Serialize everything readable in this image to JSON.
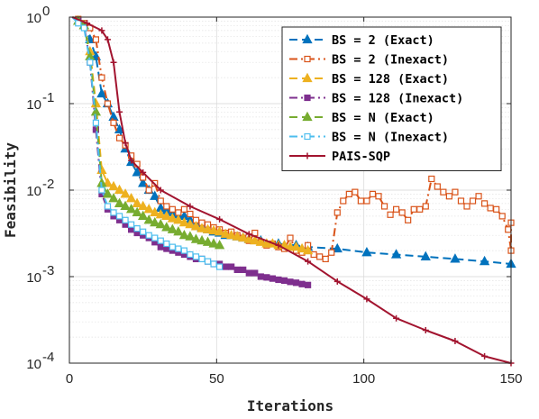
{
  "chart_data": {
    "type": "line",
    "xlabel": "Iterations",
    "ylabel": "Feasibility",
    "xlim": [
      0,
      150
    ],
    "ylim": [
      0.0001,
      1
    ],
    "yscale": "log",
    "grid": true,
    "legend_position": "top-right",
    "x_ticks": [
      {
        "value": 0,
        "label": "0"
      },
      {
        "value": 50,
        "label": "50"
      },
      {
        "value": 100,
        "label": "100"
      },
      {
        "value": 150,
        "label": "150"
      }
    ],
    "y_ticks": [
      {
        "value": 1,
        "base": "10",
        "exp": "0"
      },
      {
        "value": 0.1,
        "base": "10",
        "exp": "-1"
      },
      {
        "value": 0.01,
        "base": "10",
        "exp": "-2"
      },
      {
        "value": 0.001,
        "base": "10",
        "exp": "-3"
      },
      {
        "value": 0.0001,
        "base": "10",
        "exp": "-4"
      }
    ],
    "series": [
      {
        "name": "BS = 2 (Exact)",
        "color": "#0072BD",
        "dash": "dashed",
        "marker": "triangle",
        "marker_fill": "#0072BD",
        "x": [
          1,
          3,
          5,
          7,
          9,
          11,
          13,
          15,
          17,
          19,
          21,
          23,
          25,
          27,
          29,
          31,
          33,
          35,
          37,
          39,
          41,
          43,
          45,
          47,
          49,
          51,
          53,
          55,
          57,
          59,
          61,
          65,
          71,
          77,
          81,
          91,
          101,
          111,
          121,
          131,
          141,
          151
        ],
        "y": [
          1,
          0.9,
          0.8,
          0.55,
          0.35,
          0.13,
          0.1,
          0.07,
          0.05,
          0.03,
          0.021,
          0.016,
          0.012,
          0.01,
          0.0085,
          0.0062,
          0.0058,
          0.0055,
          0.0052,
          0.005,
          0.0045,
          0.004,
          0.0037,
          0.0035,
          0.0033,
          0.0032,
          0.003,
          0.003,
          0.0029,
          0.0028,
          0.0027,
          0.0026,
          0.0024,
          0.0023,
          0.0022,
          0.0021,
          0.0019,
          0.0018,
          0.0017,
          0.0016,
          0.0015,
          0.0014
        ]
      },
      {
        "name": "BS = 2 (Inexact)",
        "color": "#D95319",
        "dash": "dashdot",
        "marker": "square-open",
        "marker_fill": "none",
        "x": [
          1,
          3,
          5,
          7,
          9,
          11,
          13,
          15,
          17,
          19,
          21,
          23,
          25,
          27,
          29,
          31,
          33,
          35,
          37,
          39,
          41,
          43,
          45,
          47,
          49,
          51,
          53,
          55,
          57,
          59,
          61,
          63,
          65,
          67,
          69,
          71,
          73,
          75,
          77,
          79,
          81,
          83,
          85,
          87,
          89,
          91,
          93,
          95,
          97,
          99,
          101,
          103,
          105,
          107,
          109,
          111,
          113,
          115,
          117,
          119,
          121,
          123,
          125,
          127,
          129,
          131,
          133,
          135,
          137,
          139,
          141,
          143,
          145,
          147,
          149,
          150,
          151
        ],
        "y": [
          1,
          0.95,
          0.85,
          0.75,
          0.55,
          0.2,
          0.1,
          0.06,
          0.04,
          0.033,
          0.025,
          0.02,
          0.014,
          0.01,
          0.012,
          0.0075,
          0.0065,
          0.006,
          0.0055,
          0.006,
          0.0053,
          0.0045,
          0.0042,
          0.004,
          0.0037,
          0.0035,
          0.0032,
          0.0033,
          0.003,
          0.0028,
          0.0026,
          0.0032,
          0.0025,
          0.0023,
          0.0024,
          0.0022,
          0.0021,
          0.0028,
          0.002,
          0.0019,
          0.0023,
          0.0018,
          0.0017,
          0.0016,
          0.0019,
          0.0055,
          0.0075,
          0.009,
          0.0095,
          0.0075,
          0.0075,
          0.009,
          0.0085,
          0.0065,
          0.0052,
          0.006,
          0.0055,
          0.0045,
          0.006,
          0.006,
          0.0065,
          0.0135,
          0.011,
          0.0095,
          0.0085,
          0.0095,
          0.0075,
          0.0065,
          0.0075,
          0.0085,
          0.007,
          0.0062,
          0.006,
          0.005,
          0.0035,
          0.002,
          0.0042
        ]
      },
      {
        "name": "BS = 128 (Exact)",
        "color": "#EDB120",
        "dash": "dashed",
        "marker": "triangle",
        "marker_fill": "#EDB120",
        "x": [
          1,
          3,
          5,
          7,
          9,
          11,
          13,
          15,
          17,
          19,
          21,
          23,
          25,
          27,
          29,
          31,
          33,
          35,
          37,
          39,
          41,
          43,
          45,
          47,
          49,
          51,
          53,
          55,
          57,
          59,
          61,
          63,
          65,
          67,
          69,
          71,
          73,
          75,
          77,
          79,
          81
        ],
        "y": [
          1,
          0.9,
          0.8,
          0.4,
          0.1,
          0.017,
          0.012,
          0.011,
          0.01,
          0.009,
          0.008,
          0.007,
          0.0065,
          0.006,
          0.0055,
          0.0052,
          0.005,
          0.0047,
          0.0045,
          0.0042,
          0.004,
          0.0038,
          0.0036,
          0.0035,
          0.0034,
          0.0033,
          0.0031,
          0.003,
          0.0029,
          0.0028,
          0.0027,
          0.0026,
          0.0025,
          0.0024,
          0.0024,
          0.0023,
          0.0023,
          0.0022,
          0.0022,
          0.0021,
          0.002
        ]
      },
      {
        "name": "BS = 128 (Inexact)",
        "color": "#7E2F8E",
        "dash": "dashdot",
        "marker": "square",
        "marker_fill": "#7E2F8E",
        "x": [
          1,
          3,
          5,
          7,
          9,
          11,
          13,
          15,
          17,
          19,
          21,
          23,
          25,
          27,
          29,
          31,
          33,
          35,
          37,
          39,
          41,
          43,
          45,
          47,
          49,
          51,
          53,
          55,
          57,
          59,
          61,
          63,
          65,
          67,
          69,
          71,
          73,
          75,
          77,
          79,
          81
        ],
        "y": [
          1,
          0.9,
          0.8,
          0.3,
          0.05,
          0.009,
          0.006,
          0.005,
          0.0045,
          0.004,
          0.0035,
          0.0032,
          0.003,
          0.0028,
          0.0025,
          0.0022,
          0.0021,
          0.002,
          0.0019,
          0.0018,
          0.0017,
          0.0016,
          0.0016,
          0.0015,
          0.0014,
          0.0014,
          0.0013,
          0.0013,
          0.0012,
          0.0012,
          0.0011,
          0.0011,
          0.001,
          0.00098,
          0.00095,
          0.00092,
          0.0009,
          0.00087,
          0.00085,
          0.00082,
          0.0008
        ]
      },
      {
        "name": "BS = N (Exact)",
        "color": "#77AC30",
        "dash": "dashed",
        "marker": "triangle",
        "marker_fill": "#77AC30",
        "x": [
          1,
          3,
          5,
          7,
          9,
          11,
          13,
          15,
          17,
          19,
          21,
          23,
          25,
          27,
          29,
          31,
          33,
          35,
          37,
          39,
          41,
          43,
          45,
          47,
          49,
          51
        ],
        "y": [
          1,
          0.9,
          0.8,
          0.35,
          0.08,
          0.012,
          0.009,
          0.008,
          0.007,
          0.0065,
          0.006,
          0.0055,
          0.005,
          0.0045,
          0.0042,
          0.004,
          0.0037,
          0.0035,
          0.0033,
          0.003,
          0.0029,
          0.0027,
          0.0026,
          0.0025,
          0.0024,
          0.0023
        ]
      },
      {
        "name": "BS = N (Inexact)",
        "color": "#4DBEEE",
        "dash": "dashdot",
        "marker": "square-open",
        "marker_fill": "none",
        "x": [
          1,
          3,
          5,
          7,
          9,
          11,
          13,
          15,
          17,
          19,
          21,
          23,
          25,
          27,
          29,
          31,
          33,
          35,
          37,
          39,
          41,
          43,
          45,
          47,
          49,
          51
        ],
        "y": [
          1,
          0.85,
          0.75,
          0.3,
          0.06,
          0.01,
          0.0065,
          0.0055,
          0.005,
          0.0045,
          0.004,
          0.0036,
          0.0033,
          0.003,
          0.0028,
          0.0026,
          0.0024,
          0.0022,
          0.0021,
          0.002,
          0.0018,
          0.0017,
          0.0016,
          0.0015,
          0.0014,
          0.0013
        ]
      },
      {
        "name": "PAIS-SQP",
        "color": "#A2142F",
        "dash": "solid",
        "marker": "plus",
        "marker_fill": "#A2142F",
        "x": [
          1,
          6,
          11,
          13,
          15,
          17,
          19,
          21,
          25,
          31,
          41,
          51,
          61,
          71,
          81,
          91,
          101,
          111,
          121,
          131,
          141,
          151
        ],
        "y": [
          1,
          0.85,
          0.7,
          0.55,
          0.3,
          0.08,
          0.035,
          0.022,
          0.016,
          0.01,
          0.0065,
          0.0046,
          0.0031,
          0.0023,
          0.0015,
          0.00088,
          0.00055,
          0.00033,
          0.00024,
          0.00018,
          0.00012,
          0.0001
        ]
      }
    ]
  }
}
